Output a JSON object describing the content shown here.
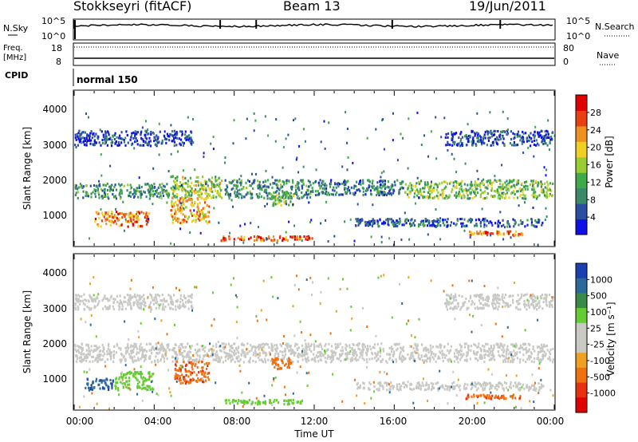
{
  "header": {
    "station": "Stokkseyri (fitACF)",
    "beam": "Beam 13",
    "date": "19/Jun/2011"
  },
  "sky_panel": {
    "left_label": "N.Sky",
    "right_label": "N.Search",
    "tick_top": "10^5",
    "tick_bottom": "10^0"
  },
  "freq_panel": {
    "label_line1": "Freq.",
    "label_line2": "[MHz]",
    "left_ticks": [
      "18",
      "8"
    ],
    "right_ticks": [
      "80",
      "0"
    ],
    "right_label": "Nave"
  },
  "cpid_panel": {
    "label": "CPID",
    "mode": "normal 150"
  },
  "power_panel": {
    "ylabel": "Slant Range [km]",
    "yticks": [
      "1000",
      "2000",
      "3000",
      "4000"
    ],
    "colorbar_title": "Power [dB]",
    "colorbar_ticks": [
      "4",
      "8",
      "12",
      "16",
      "20",
      "24",
      "28"
    ],
    "colors": [
      "#1010e6",
      "#2a4fa0",
      "#3a8a6a",
      "#3faa4a",
      "#9acd32",
      "#f0d020",
      "#f09020",
      "#e84010",
      "#e00000"
    ]
  },
  "velocity_panel": {
    "ylabel": "Slant Range [km]",
    "yticks": [
      "1000",
      "2000",
      "3000",
      "4000"
    ],
    "colorbar_title": "Velocity [m s⁻¹]",
    "colorbar_ticks": [
      "1000",
      "500",
      "100",
      "25",
      "-25",
      "-100",
      "-500",
      "-1000"
    ],
    "colors": [
      "#1a3fb0",
      "#2a6a9a",
      "#3a8a4a",
      "#66cc33",
      "#c8c8c4",
      "#c8c8c4",
      "#f0a020",
      "#f07010",
      "#e83010",
      "#e00000"
    ]
  },
  "xaxis": {
    "label": "Time UT",
    "ticks": [
      "00:00",
      "04:00",
      "08:00",
      "12:00",
      "16:00",
      "20:00",
      "00:00"
    ]
  },
  "chart_data": [
    {
      "type": "heatmap",
      "title": "Power",
      "xlabel": "Time UT",
      "ylabel": "Slant Range [km]",
      "xlim": [
        0,
        24
      ],
      "ylim": [
        200,
        4600
      ],
      "zlabel": "Power [dB]",
      "zlim": [
        0,
        32
      ],
      "bands": [
        {
          "t0": 0.0,
          "t1": 4.8,
          "r0": 1500,
          "r1": 2000,
          "level": 10
        },
        {
          "t0": 4.8,
          "t1": 7.5,
          "r0": 1500,
          "r1": 2200,
          "level": 16
        },
        {
          "t0": 7.5,
          "t1": 12.0,
          "r0": 1500,
          "r1": 2100,
          "level": 10
        },
        {
          "t0": 12.0,
          "t1": 16.5,
          "r0": 1600,
          "r1": 2100,
          "level": 8
        },
        {
          "t0": 16.5,
          "t1": 24.0,
          "r0": 1500,
          "r1": 2100,
          "level": 14
        },
        {
          "t0": 1.0,
          "t1": 3.8,
          "r0": 700,
          "r1": 1200,
          "level": 24
        },
        {
          "t0": 4.8,
          "t1": 6.8,
          "r0": 800,
          "r1": 1600,
          "level": 22
        },
        {
          "t0": 7.3,
          "t1": 12.0,
          "r0": 300,
          "r1": 500,
          "level": 26
        },
        {
          "t0": 9.8,
          "t1": 11.0,
          "r0": 1300,
          "r1": 1700,
          "level": 14
        },
        {
          "t0": 0.0,
          "t1": 6.0,
          "r0": 3000,
          "r1": 3500,
          "level": 4
        },
        {
          "t0": 18.5,
          "t1": 24.0,
          "r0": 3000,
          "r1": 3500,
          "level": 4
        },
        {
          "t0": 19.5,
          "t1": 22.5,
          "r0": 450,
          "r1": 650,
          "level": 24
        },
        {
          "t0": 14.0,
          "t1": 23.5,
          "r0": 700,
          "r1": 1000,
          "level": 6
        }
      ]
    },
    {
      "type": "heatmap",
      "title": "Velocity",
      "xlabel": "Time UT",
      "ylabel": "Slant Range [km]",
      "xlim": [
        0,
        24
      ],
      "ylim": [
        200,
        4600
      ],
      "zlabel": "Velocity [m s⁻¹]",
      "zlim": [
        -1000,
        1000
      ],
      "bands": [
        {
          "t0": 0.0,
          "t1": 24.0,
          "r0": 1500,
          "r1": 2100,
          "level": 0
        },
        {
          "t0": 0.0,
          "t1": 6.0,
          "r0": 3000,
          "r1": 3500,
          "level": 0
        },
        {
          "t0": 18.5,
          "t1": 24.0,
          "r0": 3000,
          "r1": 3500,
          "level": 0
        },
        {
          "t0": 0.5,
          "t1": 2.0,
          "r0": 700,
          "r1": 1100,
          "level": 400
        },
        {
          "t0": 2.0,
          "t1": 4.0,
          "r0": 700,
          "r1": 1300,
          "level": 60
        },
        {
          "t0": 5.0,
          "t1": 6.8,
          "r0": 900,
          "r1": 1600,
          "level": -400
        },
        {
          "t0": 7.5,
          "t1": 11.5,
          "r0": 300,
          "r1": 500,
          "level": 60
        },
        {
          "t0": 9.8,
          "t1": 11.0,
          "r0": 1300,
          "r1": 1700,
          "level": -300
        },
        {
          "t0": 19.5,
          "t1": 22.5,
          "r0": 450,
          "r1": 650,
          "level": -400
        },
        {
          "t0": 14.0,
          "t1": 23.5,
          "r0": 700,
          "r1": 1000,
          "level": 0
        }
      ]
    }
  ]
}
